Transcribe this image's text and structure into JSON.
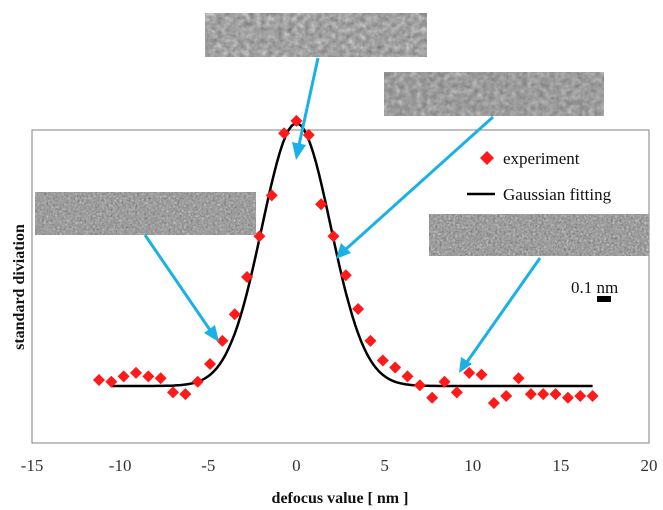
{
  "chart_data": {
    "type": "scatter",
    "xlabel": "defocus value [ nm ]",
    "ylabel": "standard diviation",
    "xlim": [
      -15,
      20
    ],
    "ylim": [
      0,
      1
    ],
    "x_ticks": [
      "-15",
      "-10",
      "-5",
      "0",
      "5",
      "10",
      "15",
      "20"
    ],
    "grid": false,
    "legend_position": "top-right",
    "series": [
      {
        "name": "experiment",
        "kind": "scatter",
        "marker": "diamond",
        "color": "#ff1a1a",
        "x": [
          -11.2,
          -10.5,
          -9.8,
          -9.1,
          -8.4,
          -7.7,
          -7.0,
          -6.3,
          -5.6,
          -4.9,
          -4.2,
          -3.5,
          -2.8,
          -2.1,
          -1.4,
          -0.7,
          0.0,
          0.7,
          1.4,
          2.1,
          2.8,
          3.5,
          4.2,
          4.9,
          5.6,
          6.3,
          7.0,
          7.7,
          8.4,
          9.1,
          9.8,
          10.5,
          11.2,
          11.9,
          12.6,
          13.3,
          14.0,
          14.7,
          15.4,
          16.1,
          16.8
        ],
        "y": [
          0.155,
          0.15,
          0.165,
          0.175,
          0.165,
          0.16,
          0.12,
          0.115,
          0.15,
          0.2,
          0.265,
          0.34,
          0.445,
          0.56,
          0.675,
          0.85,
          0.885,
          0.845,
          0.65,
          0.56,
          0.45,
          0.355,
          0.265,
          0.21,
          0.19,
          0.165,
          0.14,
          0.105,
          0.15,
          0.12,
          0.175,
          0.17,
          0.09,
          0.11,
          0.16,
          0.115,
          0.115,
          0.115,
          0.105,
          0.11,
          0.11
        ]
      },
      {
        "name": "Gaussian fitting",
        "kind": "line",
        "color": "#000000",
        "baseline": 0.138,
        "amplitude": 0.74,
        "center": 0.0,
        "sigma": 1.95,
        "x_range": [
          -10.5,
          16.8
        ]
      }
    ],
    "annotations": {
      "scale_bar_label": "0.1 nm"
    }
  },
  "colors": {
    "arrow": "#1ab2e6",
    "marker": "#ff1a1a",
    "fit_line": "#000000"
  }
}
